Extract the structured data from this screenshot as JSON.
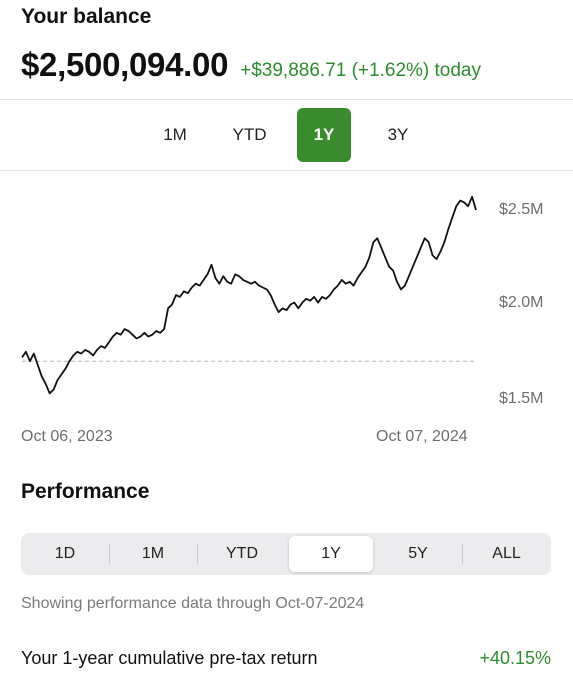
{
  "header": {
    "title": "Your balance",
    "balance": "$2,500,094.00",
    "change": "+$39,886.71 (+1.62%) today"
  },
  "range_tabs": [
    "1M",
    "YTD",
    "1Y",
    "3Y"
  ],
  "range_tabs_active": "1Y",
  "chart_data": {
    "type": "line",
    "x_start": "Oct 06, 2023",
    "x_end": "Oct 07, 2024",
    "x_labels": [
      "Oct 06, 2023",
      "Oct 07, 2024"
    ],
    "y_ticks": [
      {
        "value": 2.5,
        "label": "$2.5M"
      },
      {
        "value": 2.0,
        "label": "$2.0M"
      },
      {
        "value": 1.5,
        "label": "$1.5M"
      }
    ],
    "ylim": [
      1.5,
      2.5
    ],
    "baseline": 1.7,
    "series": [
      {
        "values": [
          1.72,
          1.75,
          1.7,
          1.74,
          1.68,
          1.62,
          1.58,
          1.53,
          1.55,
          1.6,
          1.63,
          1.66,
          1.7,
          1.73,
          1.75,
          1.74,
          1.76,
          1.75,
          1.73,
          1.76,
          1.78,
          1.77,
          1.8,
          1.83,
          1.85,
          1.84,
          1.87,
          1.86,
          1.84,
          1.82,
          1.83,
          1.85,
          1.83,
          1.84,
          1.86,
          1.85,
          1.87,
          1.98,
          2.0,
          2.05,
          2.04,
          2.07,
          2.06,
          2.09,
          2.11,
          2.1,
          2.13,
          2.16,
          2.21,
          2.14,
          2.11,
          2.15,
          2.12,
          2.11,
          2.16,
          2.15,
          2.13,
          2.12,
          2.11,
          2.12,
          2.1,
          2.09,
          2.08,
          2.05,
          2.0,
          1.96,
          1.98,
          1.97,
          2.0,
          2.01,
          1.98,
          2.01,
          2.03,
          2.02,
          2.04,
          2.01,
          2.04,
          2.03,
          2.05,
          2.08,
          2.1,
          2.13,
          2.11,
          2.12,
          2.1,
          2.14,
          2.17,
          2.2,
          2.25,
          2.33,
          2.35,
          2.3,
          2.25,
          2.2,
          2.18,
          2.12,
          2.08,
          2.1,
          2.15,
          2.2,
          2.25,
          2.3,
          2.35,
          2.33,
          2.26,
          2.24,
          2.28,
          2.33,
          2.4,
          2.46,
          2.52,
          2.55,
          2.54,
          2.52,
          2.57,
          2.5
        ]
      }
    ]
  },
  "performance": {
    "title": "Performance",
    "tabs": [
      "1D",
      "1M",
      "YTD",
      "1Y",
      "5Y",
      "ALL"
    ],
    "active": "1Y",
    "note": "Showing performance data through Oct-07-2024",
    "return_label": "Your 1-year cumulative pre-tax return",
    "return_value": "+40.15%"
  }
}
